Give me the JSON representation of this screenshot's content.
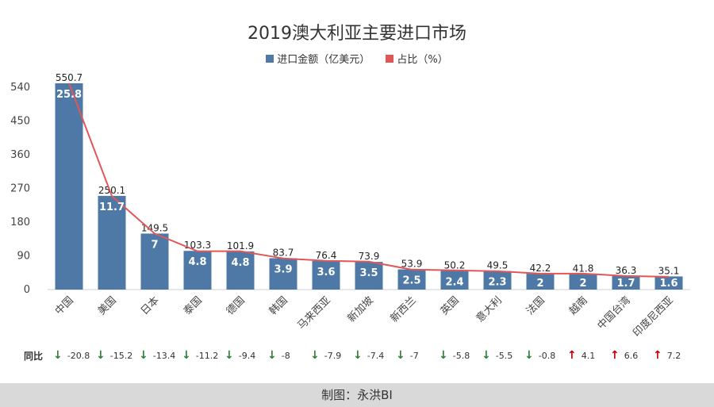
{
  "chart_data": {
    "type": "bar",
    "title": "2019澳大利亚主要进口市场",
    "categories": [
      "中国",
      "美国",
      "日本",
      "泰国",
      "德国",
      "韩国",
      "马来西亚",
      "新加坡",
      "新西兰",
      "英国",
      "意大利",
      "法国",
      "越南",
      "中国台湾",
      "印度尼西亚"
    ],
    "series": [
      {
        "name": "进口金额（亿美元）",
        "type": "bar",
        "color": "#4e79a7",
        "values": [
          550.7,
          250.1,
          149.5,
          103.3,
          101.9,
          83.7,
          76.4,
          73.9,
          53.9,
          50.2,
          49.5,
          42.2,
          41.8,
          36.3,
          35.1
        ]
      },
      {
        "name": "占比（%）",
        "type": "line",
        "color": "#e15759",
        "values": [
          25.8,
          11.7,
          7,
          4.8,
          4.8,
          3.9,
          3.6,
          3.5,
          2.5,
          2.4,
          2.3,
          2,
          2,
          1.7,
          1.6
        ]
      }
    ],
    "y_ticks": [
      0,
      90,
      180,
      270,
      360,
      450,
      540
    ],
    "ylim": [
      0,
      560
    ],
    "legend_position": "top-center",
    "yoy": {
      "label": "同比",
      "values": [
        -20.8,
        -15.2,
        -13.4,
        -11.2,
        -9.4,
        -8,
        -7.9,
        -7.4,
        -7,
        -5.8,
        -5.5,
        -0.8,
        4.1,
        6.6,
        7.2
      ],
      "up_color": "#c00000",
      "down_color": "#2e7d32"
    }
  },
  "legend": {
    "bar_label": "进口金额（亿美元）",
    "line_label": "占比（%）"
  },
  "footer": {
    "text": "制图：永洪BI"
  }
}
